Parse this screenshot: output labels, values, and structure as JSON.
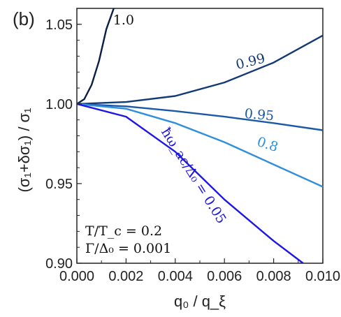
{
  "chart_data": {
    "type": "line",
    "panel_label": "(b)",
    "xlabel": "q₀ / q_ξ",
    "ylabel": "(σ₁+δσ₁) / σ₁",
    "xlim": [
      0.0,
      0.01
    ],
    "ylim": [
      0.9,
      1.06
    ],
    "x_ticks": [
      "0.000",
      "0.002",
      "0.004",
      "0.006",
      "0.008",
      "0.010"
    ],
    "y_ticks": [
      "0.90",
      "0.95",
      "1.00",
      "1.05"
    ],
    "grid": false,
    "annotations": [
      "T/T_c = 0.2",
      "Γ/Δ₀ = 0.001"
    ],
    "series_note": "ħω_ac/Δ₀ = 0.05",
    "series": [
      {
        "name": "1.0",
        "color": "#0b1f45",
        "x": [
          0.0,
          0.0003,
          0.0006,
          0.0009,
          0.0012,
          0.0015
        ],
        "y": [
          1.0,
          1.003,
          1.012,
          1.027,
          1.047,
          1.06
        ]
      },
      {
        "name": "0.99",
        "color": "#143a75",
        "x": [
          0.0,
          0.002,
          0.004,
          0.006,
          0.008,
          0.01
        ],
        "y": [
          1.0,
          1.0012,
          1.005,
          1.0135,
          1.026,
          1.043
        ]
      },
      {
        "name": "0.95",
        "color": "#1b59a8",
        "x": [
          0.0,
          0.002,
          0.004,
          0.006,
          0.008,
          0.01
        ],
        "y": [
          1.0,
          0.9985,
          0.9955,
          0.992,
          0.988,
          0.9835
        ]
      },
      {
        "name": "0.8",
        "color": "#2f8fdc",
        "x": [
          0.0,
          0.002,
          0.004,
          0.006,
          0.008,
          0.01
        ],
        "y": [
          1.0,
          0.997,
          0.988,
          0.976,
          0.962,
          0.948
        ]
      },
      {
        "name": "ħω_ac/Δ₀ = 0.05",
        "color": "#1e16e6",
        "x": [
          0.0,
          0.002,
          0.004,
          0.006,
          0.008,
          0.0092
        ],
        "y": [
          1.0,
          0.992,
          0.97,
          0.94,
          0.914,
          0.9
        ]
      }
    ]
  }
}
